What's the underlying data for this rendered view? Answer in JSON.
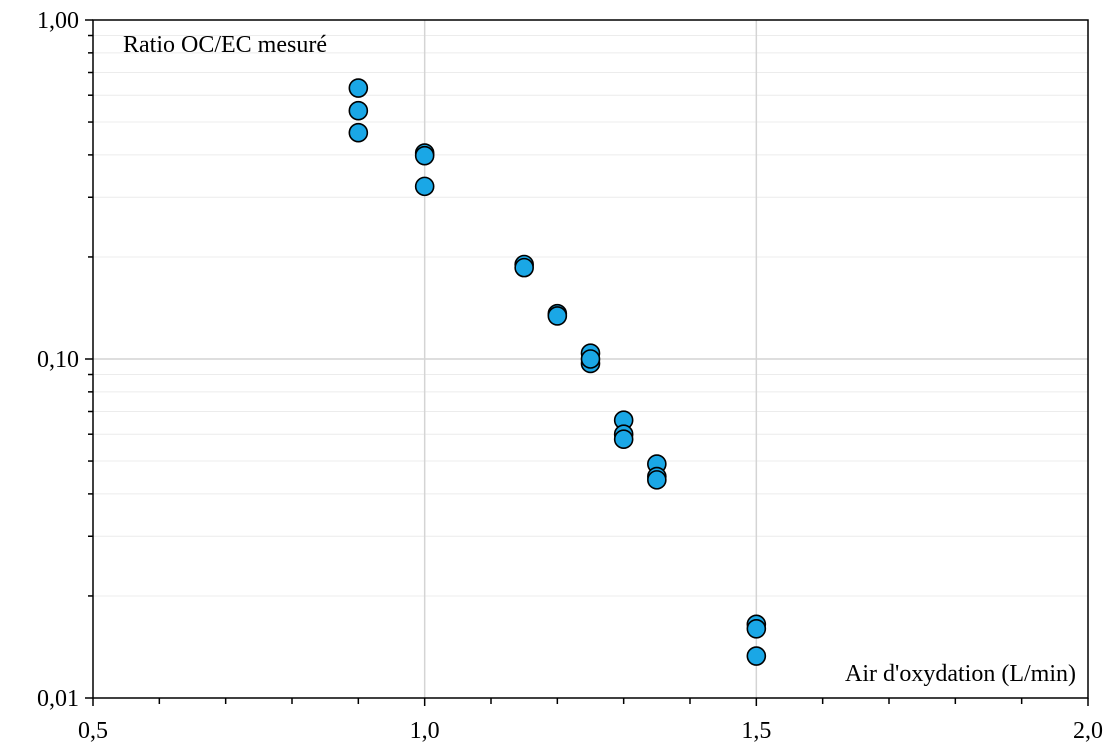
{
  "chart_data": {
    "type": "scatter",
    "title": "",
    "xlabel": "Air d'oxydation (L/min)",
    "ylabel": "Ratio OC/EC mesuré",
    "xlim": [
      0.5,
      2.0
    ],
    "ylim": [
      0.01,
      1.0
    ],
    "yscale": "log",
    "x_ticks": [
      0.5,
      1.0,
      1.5,
      2.0
    ],
    "x_tick_labels": [
      "0,5",
      "1,0",
      "1,5",
      "2,0"
    ],
    "y_ticks": [
      0.01,
      0.1,
      1.0
    ],
    "y_tick_labels": [
      "0,01",
      "0,10",
      "1,00"
    ],
    "grid": true,
    "legend": "none",
    "marker_color": "#1aa7e6",
    "marker_edge_color": "#000000",
    "series": [
      {
        "points": [
          {
            "x": 0.9,
            "y": 0.63
          },
          {
            "x": 0.9,
            "y": 0.54
          },
          {
            "x": 0.9,
            "y": 0.465
          },
          {
            "x": 1.0,
            "y": 0.405
          },
          {
            "x": 1.0,
            "y": 0.398
          },
          {
            "x": 1.0,
            "y": 0.323
          },
          {
            "x": 1.15,
            "y": 0.19
          },
          {
            "x": 1.15,
            "y": 0.186
          },
          {
            "x": 1.2,
            "y": 0.136
          },
          {
            "x": 1.2,
            "y": 0.134
          },
          {
            "x": 1.25,
            "y": 0.104
          },
          {
            "x": 1.25,
            "y": 0.097
          },
          {
            "x": 1.25,
            "y": 0.1
          },
          {
            "x": 1.3,
            "y": 0.066
          },
          {
            "x": 1.3,
            "y": 0.06
          },
          {
            "x": 1.3,
            "y": 0.058
          },
          {
            "x": 1.35,
            "y": 0.049
          },
          {
            "x": 1.35,
            "y": 0.045
          },
          {
            "x": 1.35,
            "y": 0.044
          },
          {
            "x": 1.5,
            "y": 0.0165
          },
          {
            "x": 1.5,
            "y": 0.016
          },
          {
            "x": 1.5,
            "y": 0.0133
          }
        ]
      }
    ]
  }
}
